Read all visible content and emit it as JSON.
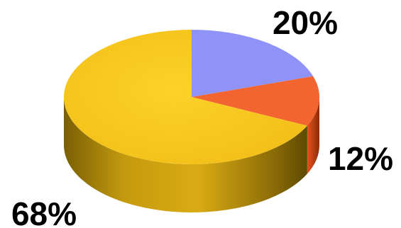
{
  "chart_data": {
    "type": "pie",
    "style": "3d",
    "slices": [
      {
        "value": 20,
        "label": "20%",
        "color": "#8f93f7"
      },
      {
        "value": 12,
        "label": "12%",
        "color": "#f26430"
      },
      {
        "value": 68,
        "label": "68%",
        "color": "#f6c61f"
      }
    ],
    "legend": false
  }
}
